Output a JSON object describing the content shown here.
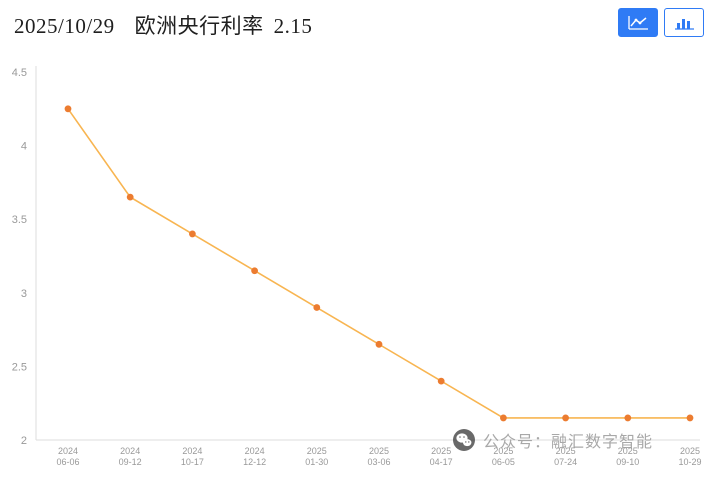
{
  "header": {
    "date": "2025/10/29",
    "instrument": "欧洲央行利率",
    "rate": "2.15"
  },
  "toolbar": {
    "line_chart_button": "line-chart-view",
    "bar_chart_button": "bar-chart-view"
  },
  "colors": {
    "accent_blue": "#2f7bf5",
    "line_orange": "#f8b551",
    "dot_orange": "#ec7c30",
    "axis_gray": "#dddddd",
    "tick_gray": "#999999"
  },
  "chart_data": {
    "type": "line",
    "title": "欧洲央行利率",
    "categories": [
      "2024-06-06",
      "2024-09-12",
      "2024-10-17",
      "2024-12-12",
      "2025-01-30",
      "2025-03-06",
      "2025-04-17",
      "2025-06-05",
      "2025-07-24",
      "2025-09-10",
      "2025-10-29"
    ],
    "values": [
      4.25,
      3.65,
      3.4,
      3.15,
      2.9,
      2.65,
      2.4,
      2.15,
      2.15,
      2.15,
      2.15
    ],
    "ylim": [
      2,
      4.5
    ],
    "ytick_step": 0.5,
    "grid": false,
    "legend": "none",
    "line_color": "#f8b551",
    "point_color": "#ec7c30"
  },
  "watermark": {
    "icon": "wechat-icon",
    "text": "公众号：融汇数字智能"
  }
}
